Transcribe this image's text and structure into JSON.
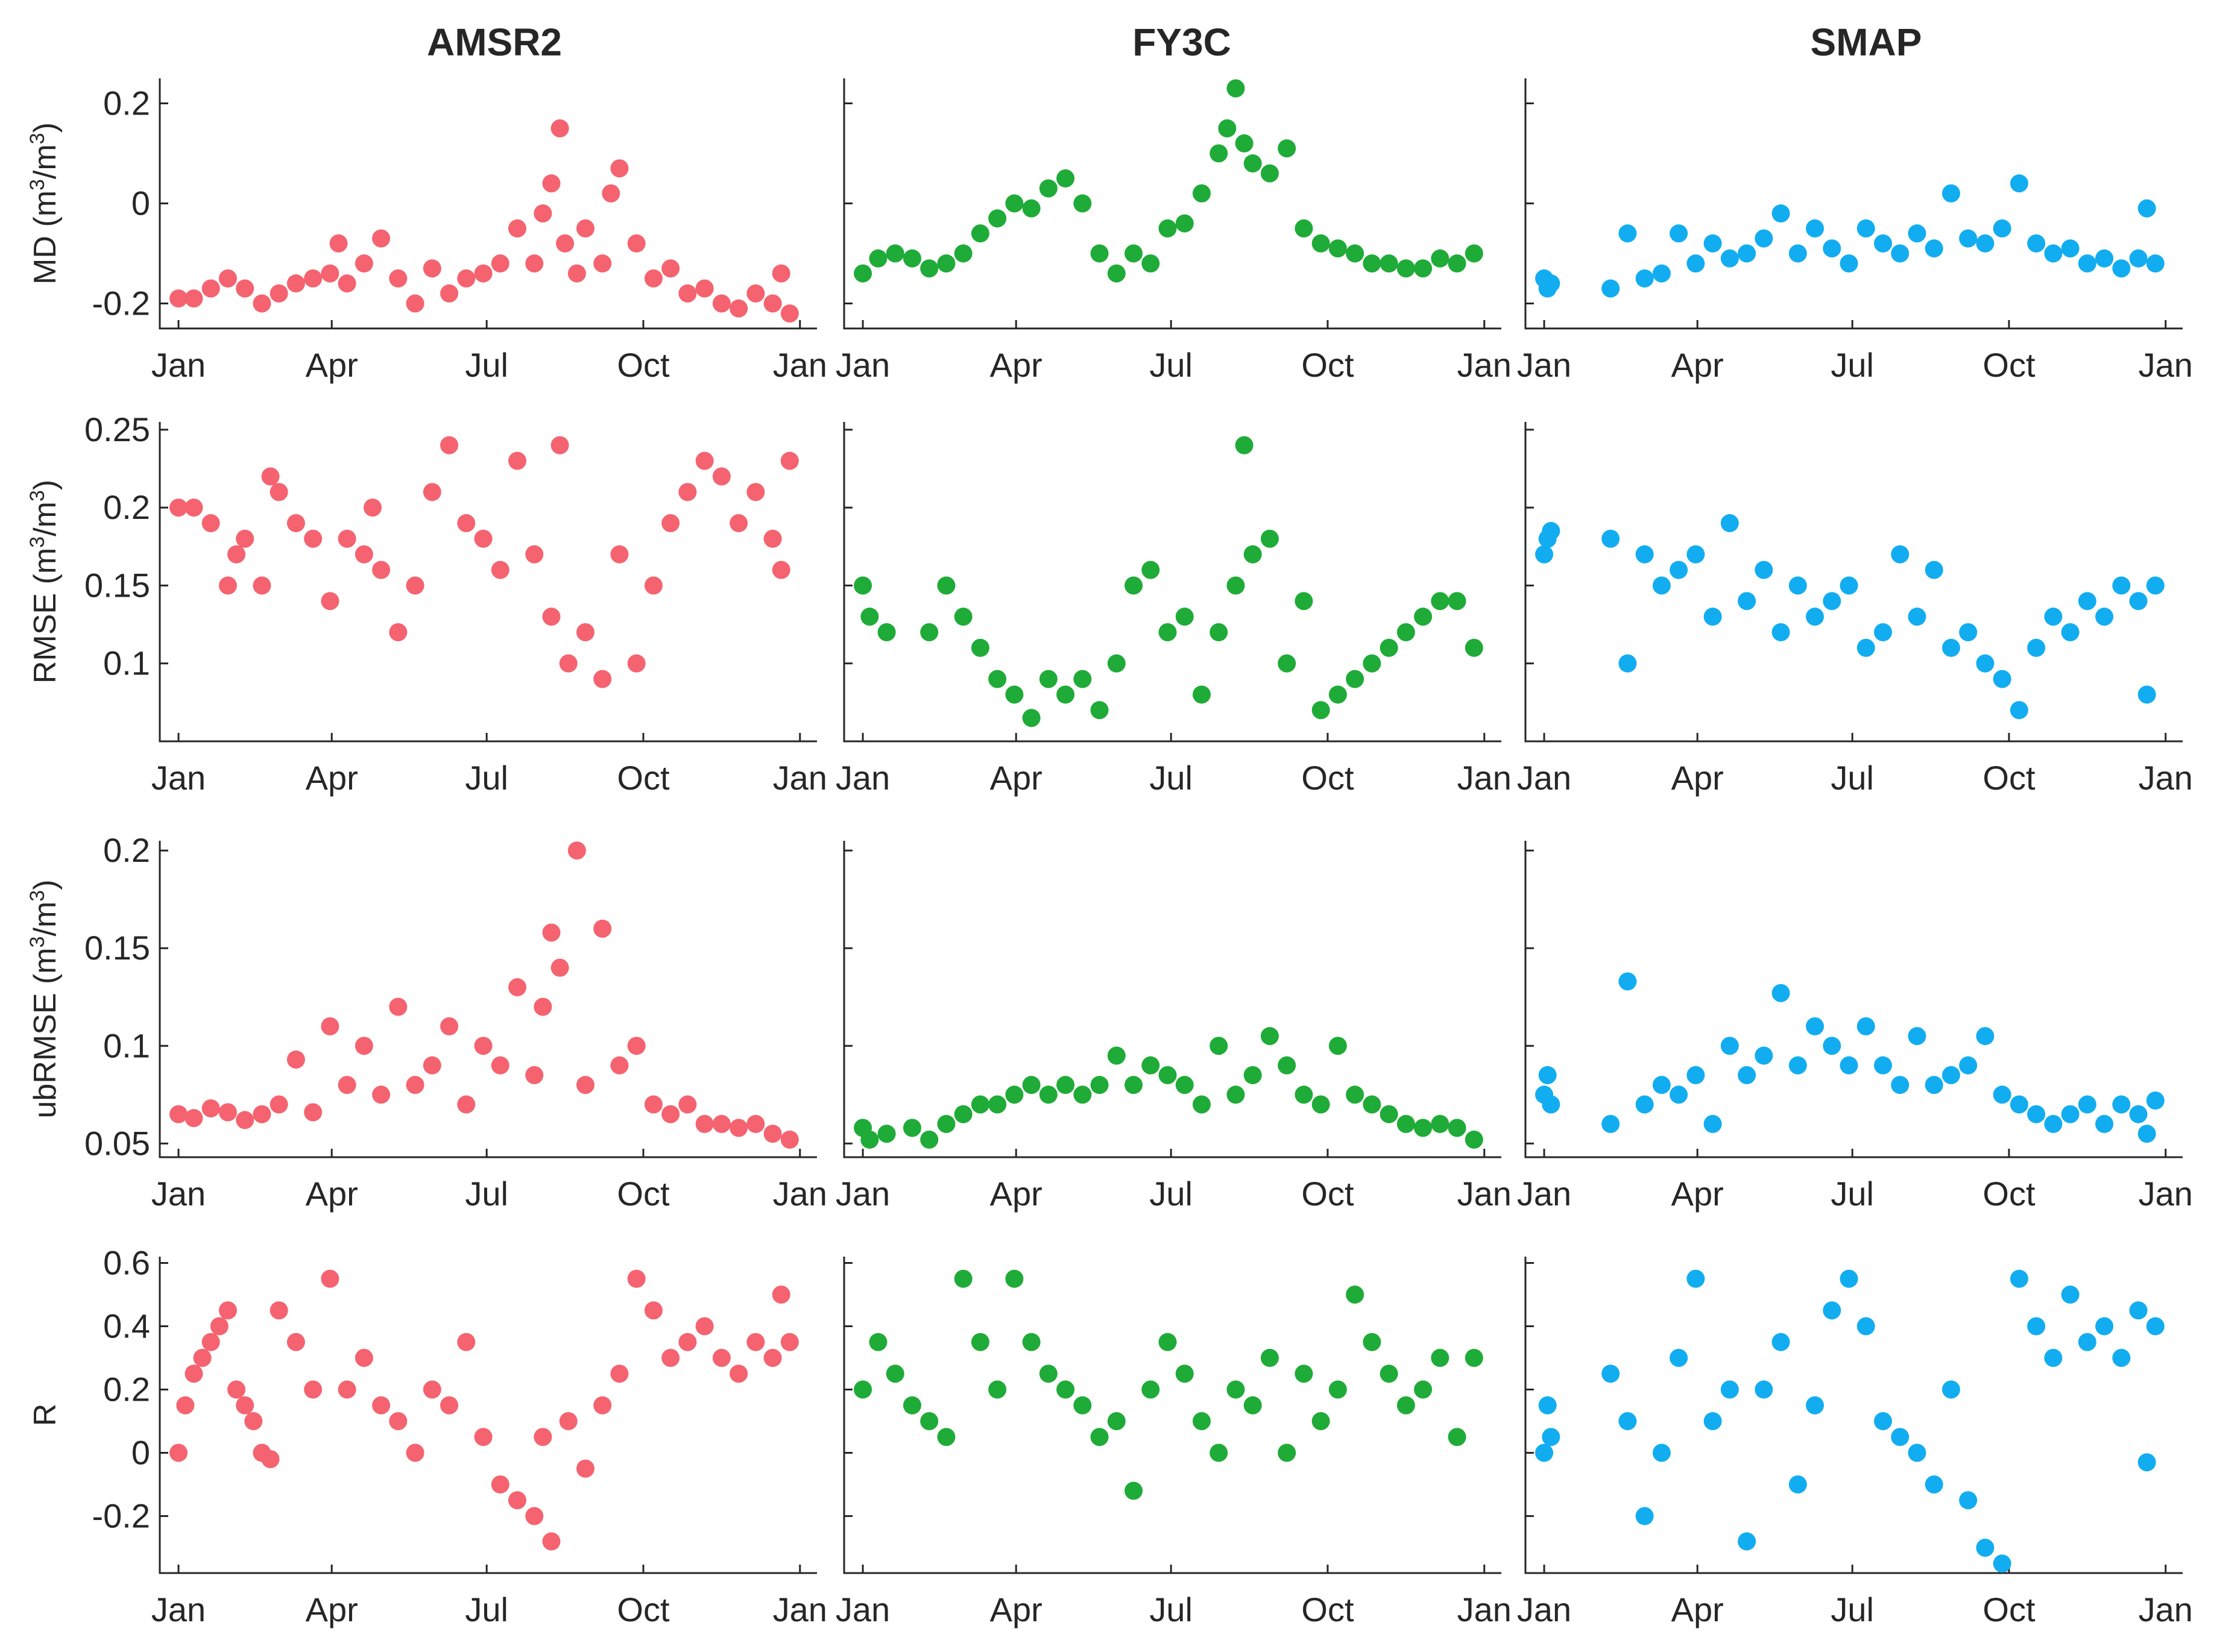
{
  "figure": {
    "columns": [
      "AMSR2",
      "FY3C",
      "SMAP"
    ],
    "colors": {
      "AMSR2": "#f4636f",
      "FY3C": "#1fab37",
      "SMAP": "#12adf0"
    },
    "month_labels": [
      "Jan",
      "Apr",
      "Jul",
      "Oct",
      "Jan"
    ],
    "month_days": [
      1,
      91,
      182,
      274,
      366
    ],
    "rows": [
      {
        "metric": "MD",
        "ylabel_main": "MD (m",
        "ylabel_sup1": "3",
        "ylabel_mid": "/m",
        "ylabel_sup2": "3",
        "ylabel_end": ")",
        "ylim": [
          -0.25,
          0.25
        ],
        "yticks": [
          -0.2,
          0,
          0.2
        ],
        "ytick_labels": [
          "-0.2",
          "0",
          "0.2"
        ]
      },
      {
        "metric": "RMSE",
        "ylabel_main": "RMSE (m",
        "ylabel_sup1": "3",
        "ylabel_mid": "/m",
        "ylabel_sup2": "3",
        "ylabel_end": ")",
        "ylim": [
          0.05,
          0.255
        ],
        "yticks": [
          0.1,
          0.15,
          0.2,
          0.25
        ],
        "ytick_labels": [
          "0.1",
          "0.15",
          "0.2",
          "0.25"
        ]
      },
      {
        "metric": "ubRMSE",
        "ylabel_main": "ubRMSE (m",
        "ylabel_sup1": "3",
        "ylabel_mid": "/m",
        "ylabel_sup2": "3",
        "ylabel_end": ")",
        "ylim": [
          0.043,
          0.205
        ],
        "yticks": [
          0.05,
          0.1,
          0.15,
          0.2
        ],
        "ytick_labels": [
          "0.05",
          "0.1",
          "0.15",
          "0.2"
        ]
      },
      {
        "metric": "R",
        "ylabel_main": "R",
        "ylabel_sup1": "",
        "ylabel_mid": "",
        "ylabel_sup2": "",
        "ylabel_end": "",
        "ylim": [
          -0.38,
          0.62
        ],
        "yticks": [
          -0.2,
          0,
          0.2,
          0.4,
          0.6
        ],
        "ytick_labels": [
          "-0.2",
          "0",
          "0.2",
          "0.4",
          "0.6"
        ]
      }
    ]
  },
  "chart_data": {
    "type": "scatter",
    "description_keys": "12 panels: rows = metrics, columns = products; x = day of year",
    "panels": [
      {
        "row": "MD",
        "col": "AMSR2",
        "x": [
          1,
          10,
          20,
          30,
          40,
          50,
          60,
          70,
          80,
          90,
          95,
          100,
          110,
          120,
          130,
          140,
          150,
          160,
          170,
          180,
          190,
          200,
          210,
          215,
          220,
          225,
          228,
          235,
          240,
          250,
          255,
          260,
          270,
          280,
          290,
          300,
          310,
          320,
          330,
          340,
          350,
          355,
          360
        ],
        "y": [
          -0.19,
          -0.19,
          -0.17,
          -0.15,
          -0.17,
          -0.2,
          -0.18,
          -0.16,
          -0.15,
          -0.14,
          -0.08,
          -0.16,
          -0.12,
          -0.07,
          -0.15,
          -0.2,
          -0.13,
          -0.18,
          -0.15,
          -0.14,
          -0.12,
          -0.05,
          -0.12,
          -0.02,
          0.04,
          0.15,
          -0.08,
          -0.14,
          -0.05,
          -0.12,
          0.02,
          0.07,
          -0.08,
          -0.15,
          -0.13,
          -0.18,
          -0.17,
          -0.2,
          -0.21,
          -0.18,
          -0.2,
          -0.14,
          -0.22
        ]
      },
      {
        "row": "MD",
        "col": "FY3C",
        "x": [
          1,
          10,
          20,
          30,
          40,
          50,
          60,
          70,
          80,
          90,
          100,
          110,
          120,
          130,
          140,
          150,
          160,
          170,
          180,
          190,
          200,
          210,
          215,
          220,
          225,
          230,
          240,
          250,
          260,
          270,
          280,
          290,
          300,
          310,
          320,
          330,
          340,
          350,
          360
        ],
        "y": [
          -0.14,
          -0.11,
          -0.1,
          -0.11,
          -0.13,
          -0.12,
          -0.1,
          -0.06,
          -0.03,
          0.0,
          -0.01,
          0.03,
          0.05,
          0.0,
          -0.1,
          -0.14,
          -0.1,
          -0.12,
          -0.05,
          -0.04,
          0.02,
          0.1,
          0.15,
          0.23,
          0.12,
          0.08,
          0.06,
          0.11,
          -0.05,
          -0.08,
          -0.09,
          -0.1,
          -0.12,
          -0.12,
          -0.13,
          -0.13,
          -0.11,
          -0.12,
          -0.1
        ]
      },
      {
        "row": "MD",
        "col": "SMAP",
        "x": [
          1,
          3,
          5,
          40,
          50,
          60,
          70,
          80,
          90,
          100,
          110,
          120,
          130,
          140,
          150,
          160,
          170,
          180,
          190,
          200,
          210,
          220,
          230,
          240,
          250,
          260,
          270,
          280,
          290,
          300,
          310,
          320,
          330,
          340,
          350,
          355,
          360
        ],
        "y": [
          -0.15,
          -0.17,
          -0.16,
          -0.17,
          -0.06,
          -0.15,
          -0.14,
          -0.06,
          -0.12,
          -0.08,
          -0.11,
          -0.1,
          -0.07,
          -0.02,
          -0.1,
          -0.05,
          -0.09,
          -0.12,
          -0.05,
          -0.08,
          -0.1,
          -0.06,
          -0.09,
          0.02,
          -0.07,
          -0.08,
          -0.05,
          0.04,
          -0.08,
          -0.1,
          -0.09,
          -0.12,
          -0.11,
          -0.13,
          -0.11,
          -0.01,
          -0.12
        ]
      },
      {
        "row": "RMSE",
        "col": "AMSR2",
        "x": [
          1,
          10,
          20,
          30,
          35,
          40,
          50,
          55,
          60,
          70,
          80,
          90,
          100,
          110,
          115,
          120,
          130,
          140,
          150,
          160,
          170,
          180,
          190,
          200,
          210,
          220,
          225,
          230,
          240,
          250,
          260,
          270,
          280,
          290,
          300,
          310,
          320,
          330,
          340,
          350,
          355,
          360
        ],
        "y": [
          0.2,
          0.2,
          0.19,
          0.15,
          0.17,
          0.18,
          0.15,
          0.22,
          0.21,
          0.19,
          0.18,
          0.14,
          0.18,
          0.17,
          0.2,
          0.16,
          0.12,
          0.15,
          0.21,
          0.24,
          0.19,
          0.18,
          0.16,
          0.23,
          0.17,
          0.13,
          0.24,
          0.1,
          0.12,
          0.09,
          0.17,
          0.1,
          0.15,
          0.19,
          0.21,
          0.23,
          0.22,
          0.19,
          0.21,
          0.18,
          0.16,
          0.23
        ]
      },
      {
        "row": "RMSE",
        "col": "FY3C",
        "x": [
          1,
          5,
          15,
          40,
          50,
          60,
          70,
          80,
          90,
          100,
          110,
          120,
          130,
          140,
          150,
          160,
          170,
          180,
          190,
          200,
          210,
          220,
          225,
          230,
          240,
          250,
          260,
          270,
          280,
          290,
          300,
          310,
          320,
          330,
          340,
          350,
          360
        ],
        "y": [
          0.15,
          0.13,
          0.12,
          0.12,
          0.15,
          0.13,
          0.11,
          0.09,
          0.08,
          0.065,
          0.09,
          0.08,
          0.09,
          0.07,
          0.1,
          0.15,
          0.16,
          0.12,
          0.13,
          0.08,
          0.12,
          0.15,
          0.24,
          0.17,
          0.18,
          0.1,
          0.14,
          0.07,
          0.08,
          0.09,
          0.1,
          0.11,
          0.12,
          0.13,
          0.14,
          0.14,
          0.11
        ]
      },
      {
        "row": "RMSE",
        "col": "SMAP",
        "x": [
          1,
          3,
          5,
          40,
          50,
          60,
          70,
          80,
          90,
          100,
          110,
          120,
          130,
          140,
          150,
          160,
          170,
          180,
          190,
          200,
          210,
          220,
          230,
          240,
          250,
          260,
          270,
          280,
          290,
          300,
          310,
          320,
          330,
          340,
          350,
          355,
          360
        ],
        "y": [
          0.17,
          0.18,
          0.185,
          0.18,
          0.1,
          0.17,
          0.15,
          0.16,
          0.17,
          0.13,
          0.19,
          0.14,
          0.16,
          0.12,
          0.15,
          0.13,
          0.14,
          0.15,
          0.11,
          0.12,
          0.17,
          0.13,
          0.16,
          0.11,
          0.12,
          0.1,
          0.09,
          0.07,
          0.11,
          0.13,
          0.12,
          0.14,
          0.13,
          0.15,
          0.14,
          0.08,
          0.15
        ]
      },
      {
        "row": "ubRMSE",
        "col": "AMSR2",
        "x": [
          1,
          10,
          20,
          30,
          40,
          50,
          60,
          70,
          80,
          90,
          100,
          110,
          120,
          130,
          140,
          150,
          160,
          170,
          180,
          190,
          200,
          210,
          215,
          220,
          225,
          235,
          240,
          250,
          260,
          270,
          280,
          290,
          300,
          310,
          320,
          330,
          340,
          350,
          360
        ],
        "y": [
          0.065,
          0.063,
          0.068,
          0.066,
          0.062,
          0.065,
          0.07,
          0.093,
          0.066,
          0.11,
          0.08,
          0.1,
          0.075,
          0.12,
          0.08,
          0.09,
          0.11,
          0.07,
          0.1,
          0.09,
          0.13,
          0.085,
          0.12,
          0.158,
          0.14,
          0.2,
          0.08,
          0.16,
          0.09,
          0.1,
          0.07,
          0.065,
          0.07,
          0.06,
          0.06,
          0.058,
          0.06,
          0.055,
          0.052
        ]
      },
      {
        "row": "ubRMSE",
        "col": "FY3C",
        "x": [
          1,
          5,
          15,
          30,
          40,
          50,
          60,
          70,
          80,
          90,
          100,
          110,
          120,
          130,
          140,
          150,
          160,
          170,
          180,
          190,
          200,
          210,
          220,
          230,
          240,
          250,
          260,
          270,
          280,
          290,
          300,
          310,
          320,
          330,
          340,
          350,
          360
        ],
        "y": [
          0.058,
          0.052,
          0.055,
          0.058,
          0.052,
          0.06,
          0.065,
          0.07,
          0.07,
          0.075,
          0.08,
          0.075,
          0.08,
          0.075,
          0.08,
          0.095,
          0.08,
          0.09,
          0.085,
          0.08,
          0.07,
          0.1,
          0.075,
          0.085,
          0.105,
          0.09,
          0.075,
          0.07,
          0.1,
          0.075,
          0.07,
          0.065,
          0.06,
          0.058,
          0.06,
          0.058,
          0.052
        ]
      },
      {
        "row": "ubRMSE",
        "col": "SMAP",
        "x": [
          1,
          3,
          5,
          40,
          50,
          60,
          70,
          80,
          90,
          100,
          110,
          120,
          130,
          140,
          150,
          160,
          170,
          180,
          190,
          200,
          210,
          220,
          230,
          240,
          250,
          260,
          270,
          280,
          290,
          300,
          310,
          320,
          330,
          340,
          350,
          355,
          360
        ],
        "y": [
          0.075,
          0.085,
          0.07,
          0.06,
          0.133,
          0.07,
          0.08,
          0.075,
          0.085,
          0.06,
          0.1,
          0.085,
          0.095,
          0.127,
          0.09,
          0.11,
          0.1,
          0.09,
          0.11,
          0.09,
          0.08,
          0.105,
          0.08,
          0.085,
          0.09,
          0.105,
          0.075,
          0.07,
          0.065,
          0.06,
          0.065,
          0.07,
          0.06,
          0.07,
          0.065,
          0.055,
          0.072
        ]
      },
      {
        "row": "R",
        "col": "AMSR2",
        "x": [
          1,
          5,
          10,
          15,
          20,
          25,
          30,
          35,
          40,
          45,
          50,
          55,
          60,
          70,
          80,
          90,
          100,
          110,
          120,
          130,
          140,
          150,
          160,
          170,
          180,
          190,
          200,
          210,
          215,
          220,
          230,
          240,
          250,
          260,
          270,
          280,
          290,
          300,
          310,
          320,
          330,
          340,
          350,
          355,
          360
        ],
        "y": [
          0.0,
          0.15,
          0.25,
          0.3,
          0.35,
          0.4,
          0.45,
          0.2,
          0.15,
          0.1,
          0.0,
          -0.02,
          0.45,
          0.35,
          0.2,
          0.55,
          0.2,
          0.3,
          0.15,
          0.1,
          0.0,
          0.2,
          0.15,
          0.35,
          0.05,
          -0.1,
          -0.15,
          -0.2,
          0.05,
          -0.28,
          0.1,
          -0.05,
          0.15,
          0.25,
          0.55,
          0.45,
          0.3,
          0.35,
          0.4,
          0.3,
          0.25,
          0.35,
          0.3,
          0.5,
          0.35
        ]
      },
      {
        "row": "R",
        "col": "FY3C",
        "x": [
          1,
          10,
          20,
          30,
          40,
          50,
          60,
          70,
          80,
          90,
          100,
          110,
          120,
          130,
          140,
          150,
          160,
          170,
          180,
          190,
          200,
          210,
          220,
          230,
          240,
          250,
          260,
          270,
          280,
          290,
          300,
          310,
          320,
          330,
          340,
          350,
          360
        ],
        "y": [
          0.2,
          0.35,
          0.25,
          0.15,
          0.1,
          0.05,
          0.55,
          0.35,
          0.2,
          0.55,
          0.35,
          0.25,
          0.2,
          0.15,
          0.05,
          0.1,
          -0.12,
          0.2,
          0.35,
          0.25,
          0.1,
          0.0,
          0.2,
          0.15,
          0.3,
          0.0,
          0.25,
          0.1,
          0.2,
          0.5,
          0.35,
          0.25,
          0.15,
          0.2,
          0.3,
          0.05,
          0.3
        ]
      },
      {
        "row": "R",
        "col": "SMAP",
        "x": [
          1,
          3,
          5,
          40,
          50,
          60,
          70,
          80,
          90,
          100,
          110,
          120,
          130,
          140,
          150,
          160,
          170,
          180,
          190,
          200,
          210,
          220,
          230,
          240,
          250,
          260,
          270,
          280,
          290,
          300,
          310,
          320,
          330,
          340,
          350,
          355,
          360
        ],
        "y": [
          0.0,
          0.15,
          0.05,
          0.25,
          0.1,
          -0.2,
          0.0,
          0.3,
          0.55,
          0.1,
          0.2,
          -0.28,
          0.2,
          0.35,
          -0.1,
          0.15,
          0.45,
          0.55,
          0.4,
          0.1,
          0.05,
          0.0,
          -0.1,
          0.2,
          -0.15,
          -0.3,
          -0.35,
          0.55,
          0.4,
          0.3,
          0.5,
          0.35,
          0.4,
          0.3,
          0.45,
          -0.03,
          0.4
        ]
      }
    ]
  }
}
